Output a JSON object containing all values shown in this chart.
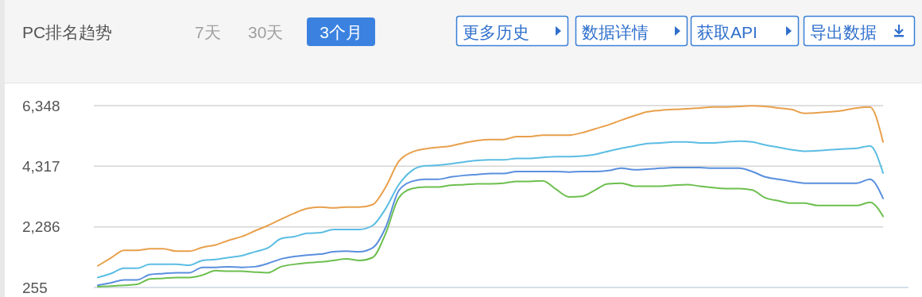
{
  "chart_data": {
    "type": "line",
    "title": "PC排名趋势",
    "annotations": [
      "7天",
      "30天",
      "3个月",
      "更多历史",
      "数据详情",
      "获取API",
      "导出数据"
    ],
    "categories": [
      null,
      null,
      null,
      null,
      null,
      null,
      null,
      null,
      null,
      null,
      null,
      null,
      null,
      null,
      null,
      null,
      null,
      null,
      null,
      null,
      null,
      null,
      null,
      null,
      null,
      null,
      null,
      null,
      null,
      null,
      null,
      null,
      null,
      null,
      null,
      null,
      null,
      null,
      null,
      null,
      null,
      null,
      null,
      null,
      null,
      null,
      null,
      null,
      null,
      null,
      null,
      null,
      null,
      null,
      null,
      null,
      null,
      null,
      null,
      null,
      null
    ],
    "series": [
      {
        "color": "#e8a04c",
        "values": [
          980,
          1240,
          1500,
          1500,
          1550,
          1550,
          1470,
          1470,
          1600,
          1680,
          1830,
          1960,
          2150,
          2330,
          2540,
          2740,
          2900,
          2950,
          2920,
          2950,
          2950,
          3030,
          3620,
          4480,
          4790,
          4900,
          4950,
          5000,
          5100,
          5180,
          5210,
          5210,
          5310,
          5310,
          5360,
          5360,
          5360,
          5440,
          5570,
          5700,
          5860,
          6010,
          6140,
          6190,
          6220,
          6240,
          6270,
          6300,
          6300,
          6320,
          6340,
          6320,
          6270,
          6220,
          6090,
          6110,
          6140,
          6190,
          6270,
          6300,
          5130
        ]
      },
      {
        "color": "#5bbde3",
        "values": [
          590,
          720,
          900,
          900,
          1030,
          1030,
          1030,
          1000,
          1160,
          1190,
          1260,
          1320,
          1450,
          1580,
          1890,
          1960,
          2070,
          2090,
          2200,
          2200,
          2200,
          2330,
          2900,
          3700,
          4170,
          4330,
          4350,
          4400,
          4460,
          4510,
          4530,
          4530,
          4580,
          4580,
          4610,
          4640,
          4640,
          4660,
          4710,
          4820,
          4920,
          5000,
          5080,
          5100,
          5130,
          5130,
          5100,
          5100,
          5130,
          5160,
          5130,
          5030,
          4950,
          4870,
          4820,
          4840,
          4870,
          4900,
          4920,
          5000,
          4090
        ]
      },
      {
        "color": "#5a8fde",
        "values": [
          330,
          410,
          510,
          510,
          690,
          720,
          750,
          750,
          930,
          930,
          950,
          930,
          950,
          1060,
          1210,
          1290,
          1340,
          1370,
          1450,
          1470,
          1450,
          1580,
          2270,
          3500,
          3810,
          3880,
          3880,
          3960,
          4010,
          4040,
          4070,
          4070,
          4140,
          4140,
          4140,
          4140,
          4120,
          4140,
          4140,
          4170,
          4250,
          4200,
          4220,
          4250,
          4270,
          4270,
          4270,
          4250,
          4250,
          4250,
          4140,
          3960,
          3880,
          3810,
          3750,
          3750,
          3750,
          3750,
          3750,
          3880,
          3240
        ]
      },
      {
        "color": "#6dbf4f",
        "values": [
          280,
          300,
          330,
          360,
          540,
          560,
          590,
          590,
          670,
          820,
          800,
          800,
          770,
          750,
          950,
          1030,
          1080,
          1110,
          1160,
          1210,
          1160,
          1260,
          2070,
          3260,
          3570,
          3620,
          3620,
          3680,
          3700,
          3730,
          3730,
          3750,
          3810,
          3810,
          3830,
          3550,
          3290,
          3310,
          3520,
          3730,
          3750,
          3650,
          3650,
          3650,
          3680,
          3700,
          3650,
          3600,
          3570,
          3570,
          3520,
          3260,
          3160,
          3080,
          3080,
          3000,
          3000,
          3000,
          3000,
          3110,
          2640
        ]
      }
    ],
    "ylim": [
      255,
      6348
    ],
    "yticks": [
      {
        "value": 255,
        "label": "255"
      },
      {
        "value": 2286,
        "label": "2,286"
      },
      {
        "value": 4317,
        "label": "4,317"
      },
      {
        "value": 6348,
        "label": "6,348"
      }
    ],
    "grid": "y"
  }
}
